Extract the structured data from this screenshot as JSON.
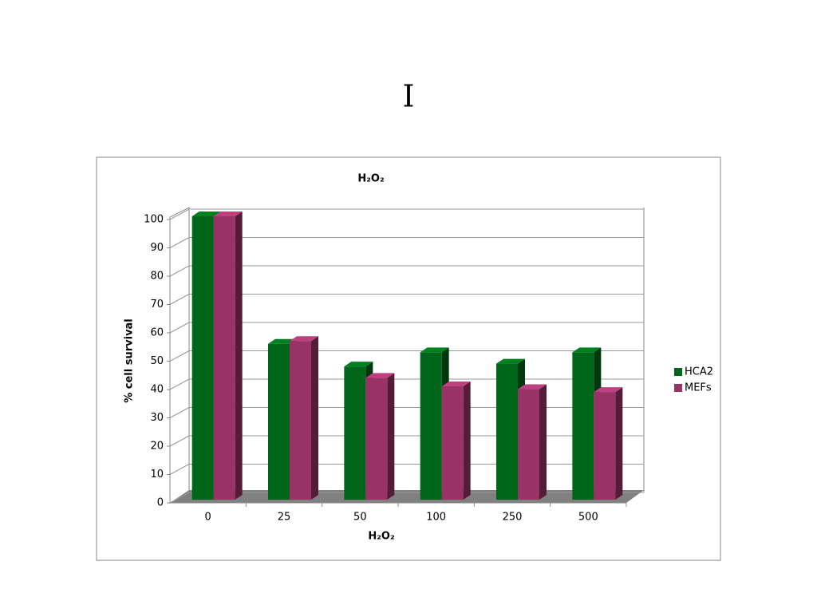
{
  "panel_label": "I",
  "chart_data": {
    "type": "bar3d",
    "title": "H₂O₂",
    "x_label": "H₂O₂",
    "y_label": "% cell survival",
    "categories": [
      "0",
      "25",
      "50",
      "100",
      "250",
      "500"
    ],
    "series": [
      {
        "name": "HCA2",
        "color": "#006619",
        "values": [
          100,
          55,
          47,
          52,
          48,
          52
        ]
      },
      {
        "name": "MEFs",
        "color": "#993366",
        "values": [
          100,
          56,
          43,
          40,
          39,
          38
        ]
      }
    ],
    "ylim": [
      0,
      100
    ],
    "yticks": [
      0,
      10,
      20,
      30,
      40,
      50,
      60,
      70,
      80,
      90,
      100
    ],
    "grid": true,
    "legend": "right"
  }
}
